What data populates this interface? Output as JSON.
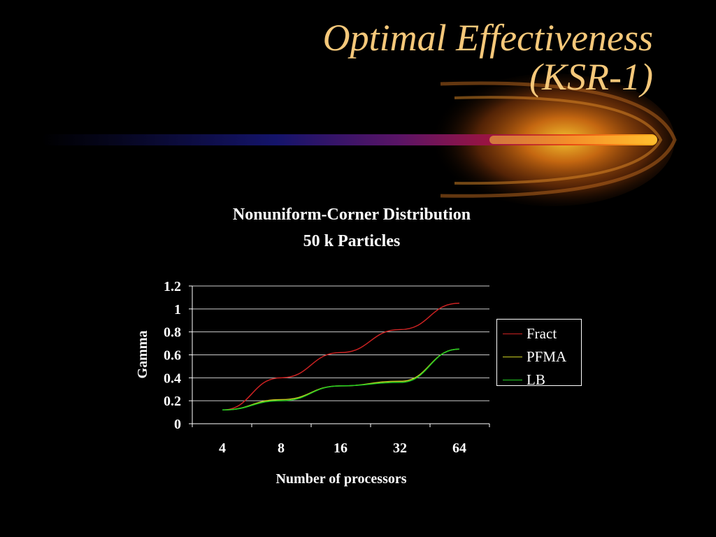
{
  "slide": {
    "title_line1": "Optimal Effectiveness",
    "title_line2": "(KSR-1)"
  },
  "colors": {
    "background": "#000000",
    "title": "#f5c87a",
    "text": "#ffffff",
    "gridline": "#cccccc"
  },
  "chart_data": {
    "type": "line",
    "title": "Nonuniform-Corner Distribution",
    "subtitle": "50 k Particles",
    "xlabel": "Number of processors",
    "ylabel": "Gamma",
    "categories": [
      "4",
      "8",
      "16",
      "32",
      "64"
    ],
    "ylim": [
      0,
      1.2
    ],
    "yticks": [
      "0",
      "0.2",
      "0.4",
      "0.6",
      "0.8",
      "1",
      "1.2"
    ],
    "grid": true,
    "legend_position": "right",
    "series": [
      {
        "name": "Fract",
        "color": "#cc2222",
        "values": [
          0.12,
          0.4,
          0.62,
          0.82,
          1.05
        ]
      },
      {
        "name": "PFMA",
        "color": "#c8cc22",
        "values": [
          0.12,
          0.21,
          0.33,
          0.37,
          0.65
        ]
      },
      {
        "name": "LB",
        "color": "#22cc22",
        "values": [
          0.12,
          0.2,
          0.33,
          0.36,
          0.65
        ]
      }
    ]
  }
}
